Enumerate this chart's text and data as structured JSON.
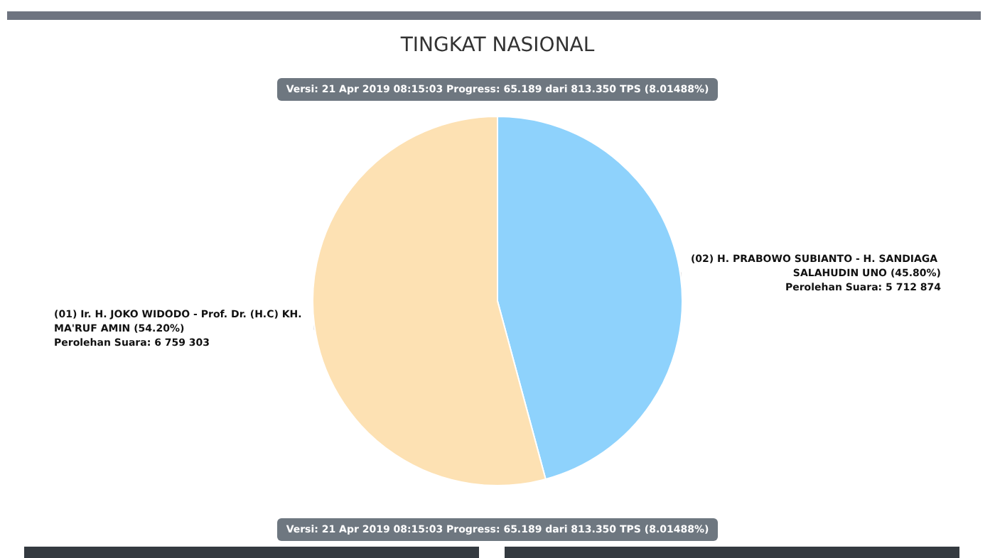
{
  "chart_data": {
    "type": "pie",
    "title": "TINGKAT NASIONAL",
    "categories": [
      "(02) H. PRABOWO SUBIANTO - H. SANDIAGA SALAHUDIN UNO",
      "(01) Ir. H. JOKO WIDODO - Prof. Dr. (H.C) KH. MA'RUF AMIN"
    ],
    "values": [
      5712874,
      6759303
    ],
    "colors": [
      "#8ed2fc",
      "#fde1b3"
    ],
    "value_labels": [
      "(45.80%)\nPerolehan Suara: 5 712 874",
      "(54.20%)\nPerolehan Suara: 6 759 303"
    ],
    "annotations": [
      "Versi: 21 Apr 2019 08:15:03 Progress: 65.189 dari 813.350 TPS (8.01488%)",
      "Versi: 21 Apr 2019 08:15:03 Progress: 65.189 dari 813.350 TPS (8.01488%)"
    ],
    "legend": false
  }
}
